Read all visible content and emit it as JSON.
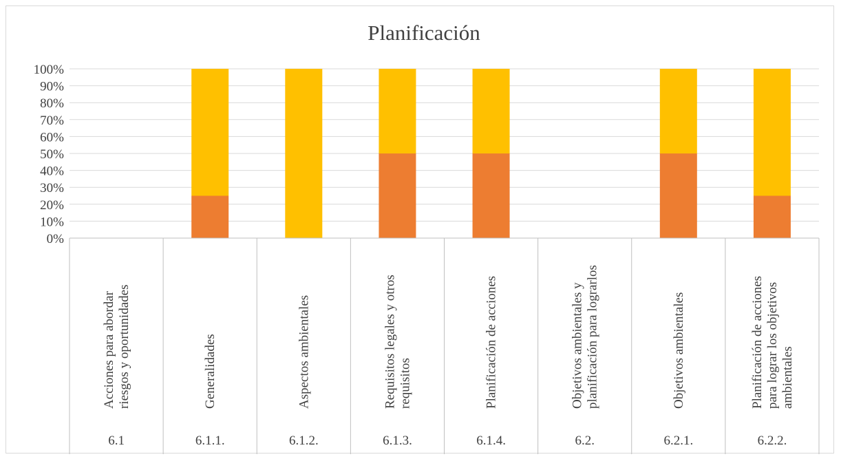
{
  "chart_data": {
    "type": "bar",
    "stacked": true,
    "percent": true,
    "title": "Planificación",
    "xlabel": "",
    "ylabel": "",
    "ylim": [
      0,
      100
    ],
    "y_ticks": [
      "0%",
      "10%",
      "20%",
      "30%",
      "40%",
      "50%",
      "60%",
      "70%",
      "80%",
      "90%",
      "100%"
    ],
    "grid": true,
    "legend": "none",
    "codes": [
      "6.1",
      "6.1.1.",
      "6.1.2.",
      "6.1.3.",
      "6.1.4.",
      "6.2.",
      "6.2.1.",
      "6.2.2."
    ],
    "categories": [
      [
        "Acciones para abordar",
        "riesgos y oportunidades"
      ],
      [
        "Generalidades"
      ],
      [
        "Aspectos ambientales"
      ],
      [
        "Requisitos legales y otros",
        "requisitos"
      ],
      [
        "Planificación de acciones"
      ],
      [
        "Objetivos ambientales y",
        "planificación para lograrlos"
      ],
      [
        "Objetivos ambientales"
      ],
      [
        "Planificación de acciones",
        "para lograr los objetivos",
        "ambientales"
      ]
    ],
    "series": [
      {
        "color": "#ED7D31",
        "values": [
          0,
          25,
          0,
          50,
          50,
          0,
          50,
          25
        ]
      },
      {
        "color": "#FFC000",
        "values": [
          0,
          75,
          100,
          50,
          50,
          0,
          50,
          75
        ]
      }
    ]
  }
}
